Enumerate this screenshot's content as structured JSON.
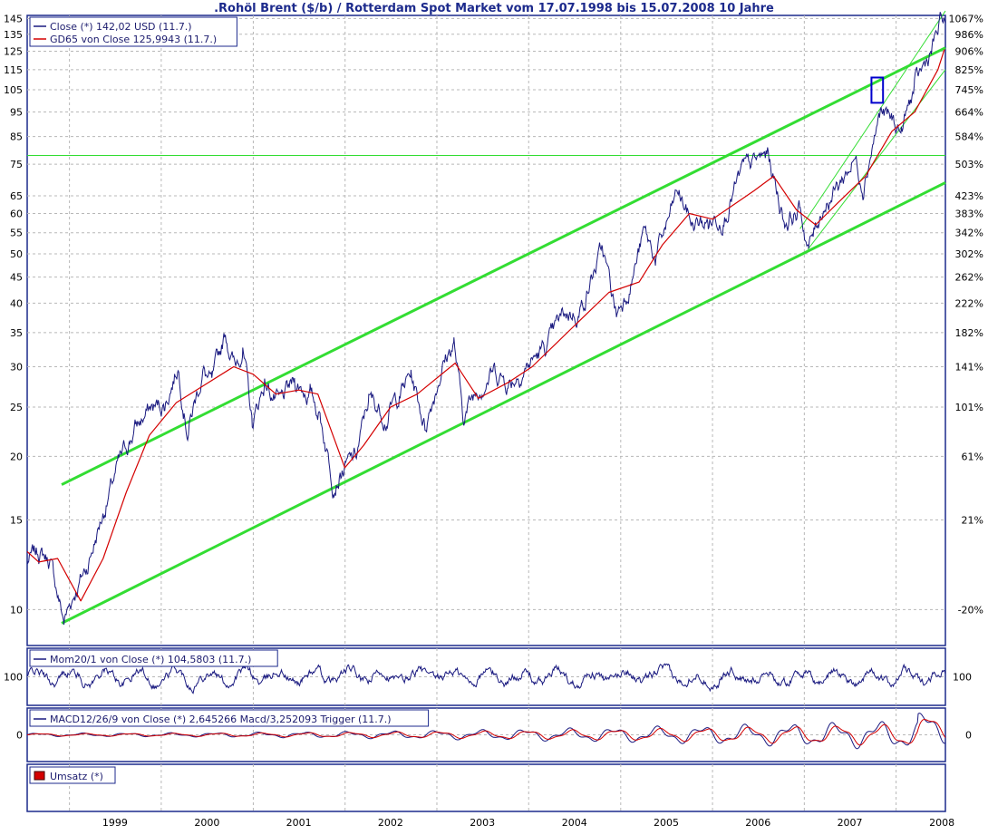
{
  "chart_data": {
    "title": ".Rohöl Brent ($/b) / Rotterdam Spot Market vom 17.07.1998 bis 15.07.2008 10 Jahre",
    "x_tick_labels": [
      "1999",
      "2000",
      "2001",
      "2002",
      "2003",
      "2004",
      "2005",
      "2006",
      "2007",
      "2008"
    ],
    "x_range": [
      "1998-07-17",
      "2008-07-15"
    ],
    "grid": true,
    "colors": {
      "price": "#1a1a80",
      "average": "#d40000",
      "channel": "#33dd33",
      "frame": "#1c2a8c",
      "highlight_box": "#0000cc"
    },
    "panels": [
      {
        "id": "price",
        "type": "line",
        "y_scale": "log",
        "ylim": [
          8.5,
          147
        ],
        "left_ticks": [
          145,
          135,
          125,
          115,
          105,
          95,
          85,
          75,
          65,
          60,
          55,
          50,
          45,
          40,
          35,
          30,
          25,
          20,
          15,
          10
        ],
        "right_ticks": [
          "1067%",
          "986%",
          "906%",
          "825%",
          "745%",
          "664%",
          "584%",
          "503%",
          "423%",
          "383%",
          "342%",
          "302%",
          "262%",
          "222%",
          "182%",
          "141%",
          "101%",
          "61%",
          "21%",
          "-20%"
        ],
        "legend": [
          {
            "label": "Close (*) 142,02 USD (11.7.)",
            "color": "#1a1a80"
          },
          {
            "label": "GD65 von Close 125,9943 (11.7.)",
            "color": "#d40000"
          }
        ],
        "series": [
          {
            "name": "Close (*) 142,02 USD (11.7.)",
            "points": [
              [
                "1998-07-17",
                12.4
              ],
              [
                "1998-09-01",
                13.0
              ],
              [
                "1998-10-15",
                12.5
              ],
              [
                "1998-12-10",
                9.5
              ],
              [
                "1999-01-20",
                10.8
              ],
              [
                "1999-03-15",
                12.3
              ],
              [
                "1999-05-15",
                15.5
              ],
              [
                "1999-07-15",
                19.2
              ],
              [
                "1999-09-20",
                22.8
              ],
              [
                "1999-11-20",
                24.8
              ],
              [
                "2000-01-15",
                25.3
              ],
              [
                "2000-03-08",
                30.2
              ],
              [
                "2000-04-15",
                22.6
              ],
              [
                "2000-06-15",
                29.5
              ],
              [
                "2000-07-20",
                27.5
              ],
              [
                "2000-09-12",
                35.0
              ],
              [
                "2000-10-20",
                30.0
              ],
              [
                "2000-11-20",
                33.0
              ],
              [
                "2000-12-28",
                23.0
              ],
              [
                "2001-02-15",
                28.0
              ],
              [
                "2001-04-15",
                25.2
              ],
              [
                "2001-06-15",
                28.0
              ],
              [
                "2001-08-15",
                26.5
              ],
              [
                "2001-09-20",
                24.5
              ],
              [
                "2001-11-15",
                18.0
              ],
              [
                "2001-12-20",
                18.8
              ],
              [
                "2002-02-15",
                20.0
              ],
              [
                "2002-04-05",
                26.0
              ],
              [
                "2002-06-15",
                24.0
              ],
              [
                "2002-09-20",
                29.0
              ],
              [
                "2002-11-15",
                23.0
              ],
              [
                "2003-01-20",
                30.0
              ],
              [
                "2003-03-10",
                33.5
              ],
              [
                "2003-04-15",
                24.0
              ],
              [
                "2003-06-15",
                27.5
              ],
              [
                "2003-08-15",
                29.5
              ],
              [
                "2003-10-15",
                28.0
              ],
              [
                "2003-12-20",
                30.0
              ],
              [
                "2004-03-15",
                33.0
              ],
              [
                "2004-05-20",
                38.0
              ],
              [
                "2004-07-20",
                38.5
              ],
              [
                "2004-10-20",
                51.0
              ],
              [
                "2004-12-15",
                38.0
              ],
              [
                "2005-02-15",
                45.0
              ],
              [
                "2005-04-04",
                55.0
              ],
              [
                "2005-05-20",
                49.0
              ],
              [
                "2005-08-15",
                66.0
              ],
              [
                "2005-10-15",
                57.0
              ],
              [
                "2005-12-15",
                57.5
              ],
              [
                "2006-02-15",
                60.0
              ],
              [
                "2006-05-01",
                72.5
              ],
              [
                "2006-08-08",
                78.5
              ],
              [
                "2006-10-15",
                58.0
              ],
              [
                "2006-12-15",
                61.0
              ],
              [
                "2007-01-18",
                51.0
              ],
              [
                "2007-03-15",
                62.0
              ],
              [
                "2007-05-15",
                68.0
              ],
              [
                "2007-07-20",
                77.0
              ],
              [
                "2007-08-22",
                69.0
              ],
              [
                "2007-10-30",
                95.0
              ],
              [
                "2007-12-15",
                91.0
              ],
              [
                "2008-01-22",
                87.0
              ],
              [
                "2008-03-14",
                106.0
              ],
              [
                "2008-05-20",
                125.0
              ],
              [
                "2008-06-15",
                136.0
              ],
              [
                "2008-07-03",
                145.0
              ],
              [
                "2008-07-15",
                142.0
              ]
            ]
          },
          {
            "name": "GD65 von Close 125,9943 (11.7.)",
            "points": [
              [
                "1998-07-17",
                13.0
              ],
              [
                "1998-09-01",
                12.4
              ],
              [
                "1998-11-15",
                12.6
              ],
              [
                "1999-02-15",
                10.4
              ],
              [
                "1999-05-15",
                12.6
              ],
              [
                "1999-08-15",
                17.0
              ],
              [
                "1999-11-15",
                22.0
              ],
              [
                "2000-03-01",
                25.5
              ],
              [
                "2000-06-15",
                27.5
              ],
              [
                "2000-10-15",
                30.0
              ],
              [
                "2001-01-01",
                29.0
              ],
              [
                "2001-04-01",
                26.5
              ],
              [
                "2001-07-01",
                27.0
              ],
              [
                "2001-09-15",
                26.5
              ],
              [
                "2001-12-31",
                19.0
              ],
              [
                "2002-03-15",
                21.0
              ],
              [
                "2002-07-01",
                25.0
              ],
              [
                "2002-10-15",
                26.5
              ],
              [
                "2003-03-15",
                30.5
              ],
              [
                "2003-06-15",
                26.0
              ],
              [
                "2003-10-15",
                28.0
              ],
              [
                "2004-01-15",
                30.0
              ],
              [
                "2004-06-15",
                35.5
              ],
              [
                "2004-11-15",
                42.0
              ],
              [
                "2005-03-15",
                44.0
              ],
              [
                "2005-06-15",
                52.0
              ],
              [
                "2005-10-01",
                60.0
              ],
              [
                "2006-01-01",
                58.5
              ],
              [
                "2006-06-15",
                66.5
              ],
              [
                "2006-09-01",
                71.0
              ],
              [
                "2006-12-01",
                61.0
              ],
              [
                "2007-02-15",
                57.0
              ],
              [
                "2007-05-15",
                63.0
              ],
              [
                "2007-09-01",
                71.0
              ],
              [
                "2007-12-15",
                87.0
              ],
              [
                "2008-03-15",
                95.0
              ],
              [
                "2008-06-15",
                115.0
              ],
              [
                "2008-07-11",
                126.0
              ]
            ]
          }
        ],
        "lines": [
          {
            "name": "channel-upper",
            "from": [
              "1998-12-01",
              17.6
            ],
            "to": [
              "2008-07-15",
              127.0
            ],
            "width": 3
          },
          {
            "name": "channel-lower",
            "from": [
              "1998-12-01",
              9.4
            ],
            "to": [
              "2008-07-15",
              69.0
            ],
            "width": 3
          },
          {
            "name": "channel-short-upper",
            "from": [
              "2006-12-15",
              56.0
            ],
            "to": [
              "2008-07-15",
              150.0
            ],
            "width": 1
          },
          {
            "name": "channel-short-lower",
            "from": [
              "2007-01-15",
              51.0
            ],
            "to": [
              "2008-07-15",
              115.0
            ],
            "width": 1
          },
          {
            "name": "horizontal-level",
            "from": [
              "1998-07-17",
              78.0
            ],
            "to": [
              "2008-07-15",
              78.0
            ],
            "width": 1
          }
        ],
        "highlight_box": {
          "from": [
            "2007-09-25",
            111.0
          ],
          "to": [
            "2007-11-10",
            99.0
          ]
        }
      },
      {
        "id": "momentum",
        "type": "line",
        "ylim": [
          72,
          128
        ],
        "left_ticks": [
          100
        ],
        "right_ticks": [
          "100"
        ],
        "legend": [
          {
            "label": "Mom20/1 von Close (*) 104,5803 (11.7.)",
            "color": "#1a1a80"
          }
        ]
      },
      {
        "id": "macd",
        "type": "line",
        "ylim": [
          -10,
          10
        ],
        "left_ticks": [
          0
        ],
        "right_ticks": [
          "0"
        ],
        "legend": [
          {
            "label": "MACD12/26/9 von Close (*) 2,645266 Macd/3,252093 Trigger (11.7.)",
            "color": "#1a1a80"
          }
        ]
      },
      {
        "id": "volume",
        "type": "bar",
        "legend": [
          {
            "label": "Umsatz (*)",
            "color": "#d40000"
          }
        ]
      }
    ]
  }
}
